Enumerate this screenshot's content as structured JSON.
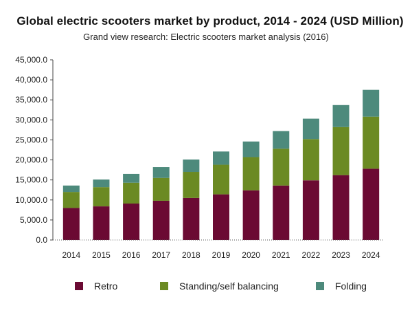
{
  "chart_data": {
    "type": "bar",
    "stacked": true,
    "title": "Global electric scooters market by product, 2014 - 2024 (USD Million)",
    "subtitle": "Grand view research: Electric scooters market analysis (2016)",
    "categories": [
      "2014",
      "2015",
      "2016",
      "2017",
      "2018",
      "2019",
      "2020",
      "2021",
      "2022",
      "2023",
      "2024"
    ],
    "series": [
      {
        "name": "Retro",
        "color": "#6b0a33",
        "values": [
          8000,
          8400,
          9100,
          9800,
          10500,
          11400,
          12400,
          13600,
          14900,
          16200,
          17800
        ]
      },
      {
        "name": "Standing/self balancing",
        "color": "#6b8a23",
        "values": [
          4000,
          4800,
          5200,
          5700,
          6500,
          7400,
          8300,
          9200,
          10300,
          12000,
          13000
        ]
      },
      {
        "name": "Folding",
        "color": "#4d8a7c",
        "values": [
          1600,
          1900,
          2200,
          2700,
          3100,
          3300,
          3900,
          4400,
          5100,
          5500,
          6700
        ]
      }
    ],
    "yticks": [
      "45,000.0",
      "40,000.0",
      "35,000.0",
      "30,000.0",
      "25,000.0",
      "20,000.0",
      "15,000.0",
      "10,000.0",
      "5,000.0",
      "0.0"
    ],
    "ylim": [
      0,
      45000
    ],
    "legend_position": "bottom",
    "grid": false
  }
}
